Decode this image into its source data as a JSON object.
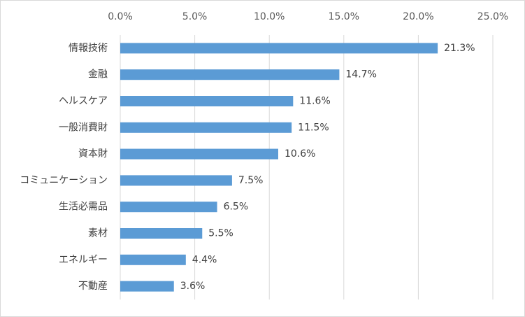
{
  "chart_data": {
    "type": "bar",
    "orientation": "horizontal",
    "categories": [
      "情報技術",
      "金融",
      "ヘルスケア",
      "一般消費財",
      "資本財",
      "コミュニケーション",
      "生活必需品",
      "素材",
      "エネルギー",
      "不動産"
    ],
    "values": [
      21.3,
      14.7,
      11.6,
      11.5,
      10.6,
      7.5,
      6.5,
      5.5,
      4.4,
      3.6
    ],
    "data_labels": [
      "21.3%",
      "14.7%",
      "11.6%",
      "11.5%",
      "10.6%",
      "7.5%",
      "6.5%",
      "5.5%",
      "4.4%",
      "3.6%"
    ],
    "xlim": [
      0,
      25
    ],
    "x_ticks": [
      0,
      5,
      10,
      15,
      20,
      25
    ],
    "x_tick_labels": [
      "0.0%",
      "5.0%",
      "10.0%",
      "15.0%",
      "20.0%",
      "25.0%"
    ],
    "x_axis_position": "top",
    "grid": true,
    "legend": false,
    "bar_color": "#5b9bd5",
    "grid_color": "#d9d9d9"
  }
}
